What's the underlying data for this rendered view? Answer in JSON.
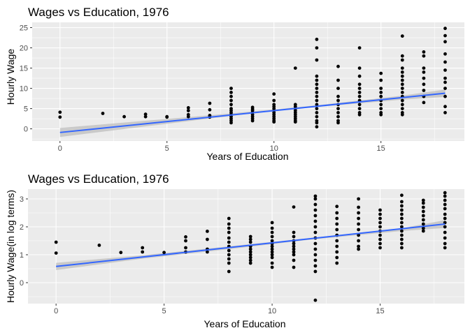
{
  "chart_data": [
    {
      "type": "scatter",
      "title": "Wages vs Education, 1976",
      "xlabel": "Years of Education",
      "ylabel": "Hourly Wage",
      "xlim": [
        -1.3,
        18.9
      ],
      "ylim": [
        -3.0,
        26.3
      ],
      "xticks": [
        0,
        5,
        10,
        15
      ],
      "yticks": [
        0,
        5,
        10,
        15,
        20,
        25
      ],
      "grid": true,
      "points": [
        {
          "x": 0,
          "y": 4.1
        },
        {
          "x": 0,
          "y": 2.9
        },
        {
          "x": 2,
          "y": 3.8
        },
        {
          "x": 3,
          "y": 3.0
        },
        {
          "x": 4,
          "y": 3.6
        },
        {
          "x": 4,
          "y": 3.0
        },
        {
          "x": 5,
          "y": 3.0
        },
        {
          "x": 5,
          "y": 2.9
        },
        {
          "x": 6,
          "y": 5.2
        },
        {
          "x": 6,
          "y": 4.5
        },
        {
          "x": 6,
          "y": 3.5
        },
        {
          "x": 6,
          "y": 3.0
        },
        {
          "x": 7,
          "y": 6.3
        },
        {
          "x": 7,
          "y": 4.7
        },
        {
          "x": 7,
          "y": 3.3
        },
        {
          "x": 7,
          "y": 2.9
        },
        {
          "x": 8,
          "y": 10.0
        },
        {
          "x": 8,
          "y": 9.0
        },
        {
          "x": 8,
          "y": 8.0
        },
        {
          "x": 8,
          "y": 7.0
        },
        {
          "x": 8,
          "y": 6.0
        },
        {
          "x": 8,
          "y": 5.0
        },
        {
          "x": 8,
          "y": 4.5
        },
        {
          "x": 8,
          "y": 4.0
        },
        {
          "x": 8,
          "y": 3.5
        },
        {
          "x": 8,
          "y": 3.0
        },
        {
          "x": 8,
          "y": 2.5
        },
        {
          "x": 8,
          "y": 2.0
        },
        {
          "x": 8,
          "y": 1.5
        },
        {
          "x": 9,
          "y": 5.3
        },
        {
          "x": 9,
          "y": 4.9
        },
        {
          "x": 9,
          "y": 4.5
        },
        {
          "x": 9,
          "y": 4.0
        },
        {
          "x": 9,
          "y": 3.5
        },
        {
          "x": 9,
          "y": 3.0
        },
        {
          "x": 9,
          "y": 2.5
        },
        {
          "x": 9,
          "y": 2.0
        },
        {
          "x": 10,
          "y": 8.6
        },
        {
          "x": 10,
          "y": 7.0
        },
        {
          "x": 10,
          "y": 6.0
        },
        {
          "x": 10,
          "y": 5.5
        },
        {
          "x": 10,
          "y": 5.0
        },
        {
          "x": 10,
          "y": 4.5
        },
        {
          "x": 10,
          "y": 4.0
        },
        {
          "x": 10,
          "y": 3.5
        },
        {
          "x": 10,
          "y": 3.0
        },
        {
          "x": 10,
          "y": 2.5
        },
        {
          "x": 10,
          "y": 2.0
        },
        {
          "x": 10,
          "y": 1.7
        },
        {
          "x": 11,
          "y": 15.0
        },
        {
          "x": 11,
          "y": 6.0
        },
        {
          "x": 11,
          "y": 5.5
        },
        {
          "x": 11,
          "y": 5.0
        },
        {
          "x": 11,
          "y": 4.5
        },
        {
          "x": 11,
          "y": 4.0
        },
        {
          "x": 11,
          "y": 3.5
        },
        {
          "x": 11,
          "y": 3.0
        },
        {
          "x": 11,
          "y": 2.5
        },
        {
          "x": 11,
          "y": 2.0
        },
        {
          "x": 11,
          "y": 1.7
        },
        {
          "x": 12,
          "y": 22.1
        },
        {
          "x": 12,
          "y": 20.0
        },
        {
          "x": 12,
          "y": 17.0
        },
        {
          "x": 12,
          "y": 13.0
        },
        {
          "x": 12,
          "y": 12.0
        },
        {
          "x": 12,
          "y": 11.0
        },
        {
          "x": 12,
          "y": 10.0
        },
        {
          "x": 12,
          "y": 9.0
        },
        {
          "x": 12,
          "y": 8.0
        },
        {
          "x": 12,
          "y": 7.0
        },
        {
          "x": 12,
          "y": 6.0
        },
        {
          "x": 12,
          "y": 5.0
        },
        {
          "x": 12,
          "y": 4.0
        },
        {
          "x": 12,
          "y": 3.0
        },
        {
          "x": 12,
          "y": 2.0
        },
        {
          "x": 12,
          "y": 1.5
        },
        {
          "x": 12,
          "y": 0.5
        },
        {
          "x": 13,
          "y": 15.4
        },
        {
          "x": 13,
          "y": 12.0
        },
        {
          "x": 13,
          "y": 10.0
        },
        {
          "x": 13,
          "y": 8.0
        },
        {
          "x": 13,
          "y": 7.0
        },
        {
          "x": 13,
          "y": 6.0
        },
        {
          "x": 13,
          "y": 5.0
        },
        {
          "x": 13,
          "y": 4.0
        },
        {
          "x": 13,
          "y": 3.0
        },
        {
          "x": 13,
          "y": 2.0
        },
        {
          "x": 13,
          "y": 1.5
        },
        {
          "x": 14,
          "y": 20.0
        },
        {
          "x": 14,
          "y": 15.0
        },
        {
          "x": 14,
          "y": 13.0
        },
        {
          "x": 14,
          "y": 11.0
        },
        {
          "x": 14,
          "y": 10.0
        },
        {
          "x": 14,
          "y": 9.0
        },
        {
          "x": 14,
          "y": 8.0
        },
        {
          "x": 14,
          "y": 7.0
        },
        {
          "x": 14,
          "y": 6.0
        },
        {
          "x": 14,
          "y": 5.0
        },
        {
          "x": 14,
          "y": 4.0
        },
        {
          "x": 14,
          "y": 3.5
        },
        {
          "x": 15,
          "y": 13.7
        },
        {
          "x": 15,
          "y": 12.0
        },
        {
          "x": 15,
          "y": 10.0
        },
        {
          "x": 15,
          "y": 9.0
        },
        {
          "x": 15,
          "y": 8.0
        },
        {
          "x": 15,
          "y": 7.0
        },
        {
          "x": 15,
          "y": 6.0
        },
        {
          "x": 15,
          "y": 5.0
        },
        {
          "x": 15,
          "y": 4.0
        },
        {
          "x": 15,
          "y": 3.5
        },
        {
          "x": 16,
          "y": 22.9
        },
        {
          "x": 16,
          "y": 18.0
        },
        {
          "x": 16,
          "y": 17.0
        },
        {
          "x": 16,
          "y": 15.0
        },
        {
          "x": 16,
          "y": 14.0
        },
        {
          "x": 16,
          "y": 13.0
        },
        {
          "x": 16,
          "y": 12.0
        },
        {
          "x": 16,
          "y": 11.0
        },
        {
          "x": 16,
          "y": 10.0
        },
        {
          "x": 16,
          "y": 9.0
        },
        {
          "x": 16,
          "y": 8.0
        },
        {
          "x": 16,
          "y": 7.0
        },
        {
          "x": 16,
          "y": 6.0
        },
        {
          "x": 16,
          "y": 5.0
        },
        {
          "x": 16,
          "y": 4.0
        },
        {
          "x": 16,
          "y": 3.5
        },
        {
          "x": 17,
          "y": 19.0
        },
        {
          "x": 17,
          "y": 18.0
        },
        {
          "x": 17,
          "y": 15.0
        },
        {
          "x": 17,
          "y": 14.0
        },
        {
          "x": 17,
          "y": 12.5
        },
        {
          "x": 17,
          "y": 11.0
        },
        {
          "x": 17,
          "y": 9.5
        },
        {
          "x": 17,
          "y": 8.0
        },
        {
          "x": 17,
          "y": 6.5
        },
        {
          "x": 18,
          "y": 24.8
        },
        {
          "x": 18,
          "y": 23.0
        },
        {
          "x": 18,
          "y": 21.5
        },
        {
          "x": 18,
          "y": 18.5
        },
        {
          "x": 18,
          "y": 16.5
        },
        {
          "x": 18,
          "y": 14.5
        },
        {
          "x": 18,
          "y": 12.5
        },
        {
          "x": 18,
          "y": 11.5
        },
        {
          "x": 18,
          "y": 10.0
        },
        {
          "x": 18,
          "y": 8.0
        },
        {
          "x": 18,
          "y": 5.5
        },
        {
          "x": 18,
          "y": 4.0
        }
      ],
      "trend": {
        "x": [
          0,
          18
        ],
        "y": [
          -0.9,
          8.8
        ]
      },
      "band": {
        "x": [
          0,
          4,
          8,
          10,
          12,
          16,
          18
        ],
        "lower": [
          -2.0,
          0.6,
          3.2,
          4.4,
          5.4,
          7.2,
          7.9
        ],
        "upper": [
          0.2,
          2.0,
          3.8,
          4.8,
          5.8,
          8.2,
          9.7
        ]
      },
      "colors": {
        "point": "#000000",
        "line": "#3366ff",
        "band": "#bdbdbd",
        "panel": "#ebebeb",
        "grid": "#ffffff"
      }
    },
    {
      "type": "scatter",
      "title": "Wages vs Education, 1976",
      "xlabel": "Years of Education",
      "ylabel": "Hourly Wage(in log terms)",
      "xlim": [
        -1.3,
        18.9
      ],
      "ylim": [
        -0.75,
        3.35
      ],
      "xticks": [
        0,
        5,
        10,
        15
      ],
      "yticks": [
        0,
        1,
        2,
        3
      ],
      "grid": true,
      "points": [
        {
          "x": 0,
          "y": 1.45
        },
        {
          "x": 0,
          "y": 1.06
        },
        {
          "x": 2,
          "y": 1.34
        },
        {
          "x": 3,
          "y": 1.08
        },
        {
          "x": 4,
          "y": 1.25
        },
        {
          "x": 4,
          "y": 1.1
        },
        {
          "x": 5,
          "y": 1.08
        },
        {
          "x": 6,
          "y": 1.64
        },
        {
          "x": 6,
          "y": 1.5
        },
        {
          "x": 6,
          "y": 1.25
        },
        {
          "x": 6,
          "y": 1.1
        },
        {
          "x": 7,
          "y": 1.84
        },
        {
          "x": 7,
          "y": 1.55
        },
        {
          "x": 7,
          "y": 1.2
        },
        {
          "x": 7,
          "y": 1.1
        },
        {
          "x": 8,
          "y": 2.3
        },
        {
          "x": 8,
          "y": 2.1
        },
        {
          "x": 8,
          "y": 1.95
        },
        {
          "x": 8,
          "y": 1.8
        },
        {
          "x": 8,
          "y": 1.6
        },
        {
          "x": 8,
          "y": 1.45
        },
        {
          "x": 8,
          "y": 1.3
        },
        {
          "x": 8,
          "y": 1.15
        },
        {
          "x": 8,
          "y": 1.0
        },
        {
          "x": 8,
          "y": 0.85
        },
        {
          "x": 8,
          "y": 0.7
        },
        {
          "x": 8,
          "y": 0.4
        },
        {
          "x": 9,
          "y": 1.65
        },
        {
          "x": 9,
          "y": 1.55
        },
        {
          "x": 9,
          "y": 1.45
        },
        {
          "x": 9,
          "y": 1.3
        },
        {
          "x": 9,
          "y": 1.2
        },
        {
          "x": 9,
          "y": 1.1
        },
        {
          "x": 9,
          "y": 1.0
        },
        {
          "x": 9,
          "y": 0.9
        },
        {
          "x": 9,
          "y": 0.8
        },
        {
          "x": 9,
          "y": 0.7
        },
        {
          "x": 10,
          "y": 2.15
        },
        {
          "x": 10,
          "y": 1.95
        },
        {
          "x": 10,
          "y": 1.8
        },
        {
          "x": 10,
          "y": 1.65
        },
        {
          "x": 10,
          "y": 1.5
        },
        {
          "x": 10,
          "y": 1.4
        },
        {
          "x": 10,
          "y": 1.3
        },
        {
          "x": 10,
          "y": 1.2
        },
        {
          "x": 10,
          "y": 1.1
        },
        {
          "x": 10,
          "y": 1.0
        },
        {
          "x": 10,
          "y": 0.9
        },
        {
          "x": 10,
          "y": 0.7
        },
        {
          "x": 10,
          "y": 0.55
        },
        {
          "x": 11,
          "y": 2.71
        },
        {
          "x": 11,
          "y": 1.8
        },
        {
          "x": 11,
          "y": 1.65
        },
        {
          "x": 11,
          "y": 1.5
        },
        {
          "x": 11,
          "y": 1.4
        },
        {
          "x": 11,
          "y": 1.3
        },
        {
          "x": 11,
          "y": 1.2
        },
        {
          "x": 11,
          "y": 1.1
        },
        {
          "x": 11,
          "y": 1.0
        },
        {
          "x": 11,
          "y": 0.8
        },
        {
          "x": 11,
          "y": 0.55
        },
        {
          "x": 12,
          "y": 3.1
        },
        {
          "x": 12,
          "y": 3.0
        },
        {
          "x": 12,
          "y": 2.8
        },
        {
          "x": 12,
          "y": 2.6
        },
        {
          "x": 12,
          "y": 2.4
        },
        {
          "x": 12,
          "y": 2.2
        },
        {
          "x": 12,
          "y": 2.0
        },
        {
          "x": 12,
          "y": 1.8
        },
        {
          "x": 12,
          "y": 1.6
        },
        {
          "x": 12,
          "y": 1.4
        },
        {
          "x": 12,
          "y": 1.2
        },
        {
          "x": 12,
          "y": 1.0
        },
        {
          "x": 12,
          "y": 0.8
        },
        {
          "x": 12,
          "y": 0.6
        },
        {
          "x": 12,
          "y": 0.4
        },
        {
          "x": 12,
          "y": -0.63
        },
        {
          "x": 13,
          "y": 2.73
        },
        {
          "x": 13,
          "y": 2.5
        },
        {
          "x": 13,
          "y": 2.3
        },
        {
          "x": 13,
          "y": 2.1
        },
        {
          "x": 13,
          "y": 1.9
        },
        {
          "x": 13,
          "y": 1.7
        },
        {
          "x": 13,
          "y": 1.5
        },
        {
          "x": 13,
          "y": 1.3
        },
        {
          "x": 13,
          "y": 1.1
        },
        {
          "x": 13,
          "y": 0.9
        },
        {
          "x": 13,
          "y": 0.7
        },
        {
          "x": 14,
          "y": 3.0
        },
        {
          "x": 14,
          "y": 2.7
        },
        {
          "x": 14,
          "y": 2.5
        },
        {
          "x": 14,
          "y": 2.3
        },
        {
          "x": 14,
          "y": 2.1
        },
        {
          "x": 14,
          "y": 1.9
        },
        {
          "x": 14,
          "y": 1.7
        },
        {
          "x": 14,
          "y": 1.5
        },
        {
          "x": 14,
          "y": 1.3
        },
        {
          "x": 14,
          "y": 1.2
        },
        {
          "x": 15,
          "y": 2.6
        },
        {
          "x": 15,
          "y": 2.45
        },
        {
          "x": 15,
          "y": 2.3
        },
        {
          "x": 15,
          "y": 2.15
        },
        {
          "x": 15,
          "y": 2.0
        },
        {
          "x": 15,
          "y": 1.85
        },
        {
          "x": 15,
          "y": 1.7
        },
        {
          "x": 15,
          "y": 1.55
        },
        {
          "x": 15,
          "y": 1.4
        },
        {
          "x": 15,
          "y": 1.25
        },
        {
          "x": 16,
          "y": 3.13
        },
        {
          "x": 16,
          "y": 2.9
        },
        {
          "x": 16,
          "y": 2.75
        },
        {
          "x": 16,
          "y": 2.6
        },
        {
          "x": 16,
          "y": 2.45
        },
        {
          "x": 16,
          "y": 2.3
        },
        {
          "x": 16,
          "y": 2.15
        },
        {
          "x": 16,
          "y": 2.0
        },
        {
          "x": 16,
          "y": 1.85
        },
        {
          "x": 16,
          "y": 1.7
        },
        {
          "x": 16,
          "y": 1.55
        },
        {
          "x": 16,
          "y": 1.4
        },
        {
          "x": 16,
          "y": 1.25
        },
        {
          "x": 17,
          "y": 2.95
        },
        {
          "x": 17,
          "y": 2.85
        },
        {
          "x": 17,
          "y": 2.7
        },
        {
          "x": 17,
          "y": 2.55
        },
        {
          "x": 17,
          "y": 2.4
        },
        {
          "x": 17,
          "y": 2.25
        },
        {
          "x": 17,
          "y": 2.1
        },
        {
          "x": 17,
          "y": 1.95
        },
        {
          "x": 17,
          "y": 1.85
        },
        {
          "x": 18,
          "y": 3.22
        },
        {
          "x": 18,
          "y": 3.1
        },
        {
          "x": 18,
          "y": 2.95
        },
        {
          "x": 18,
          "y": 2.8
        },
        {
          "x": 18,
          "y": 2.65
        },
        {
          "x": 18,
          "y": 2.45
        },
        {
          "x": 18,
          "y": 2.3
        },
        {
          "x": 18,
          "y": 2.15
        },
        {
          "x": 18,
          "y": 2.0
        },
        {
          "x": 18,
          "y": 1.8
        },
        {
          "x": 18,
          "y": 1.6
        },
        {
          "x": 18,
          "y": 1.4
        },
        {
          "x": 18,
          "y": 1.25
        }
      ],
      "trend": {
        "x": [
          0,
          18
        ],
        "y": [
          0.58,
          2.1
        ]
      },
      "band": {
        "x": [
          0,
          4,
          8,
          10,
          12,
          16,
          18
        ],
        "lower": [
          0.45,
          0.86,
          1.2,
          1.38,
          1.56,
          1.85,
          1.96
        ],
        "upper": [
          0.71,
          0.98,
          1.3,
          1.46,
          1.62,
          1.95,
          2.24
        ]
      },
      "colors": {
        "point": "#000000",
        "line": "#3366ff",
        "band": "#bdbdbd",
        "panel": "#ebebeb",
        "grid": "#ffffff"
      }
    }
  ]
}
